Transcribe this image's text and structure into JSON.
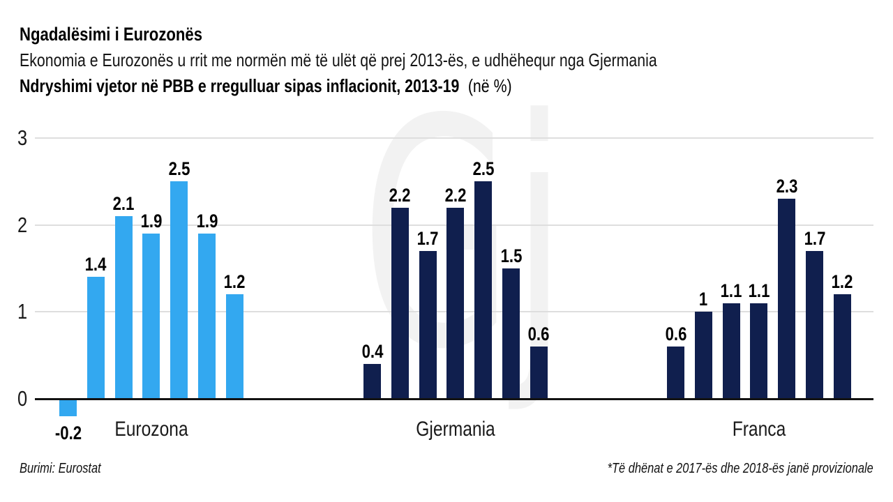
{
  "header": {
    "title": "Ngadalësimi i Eurozonës",
    "subtitle": "Ekonomia e Eurozonës u rrit me normën më të ulët që prej 2013-ës, e udhëhequr nga Gjermania",
    "measure": "Ndryshimi vjetor në PBB e rregulluar sipas inflacionit, 2013-19",
    "measure_unit": "(në %)"
  },
  "watermark": {
    "text": "Gj",
    "color": "#f2f2f2"
  },
  "footer": {
    "source": "Burimi: Eurostat",
    "note": "*Të dhënat e 2017-ës dhe 2018-ës janë provizionale"
  },
  "chart_data": {
    "type": "bar",
    "title": "Ngadalësimi i Eurozonës",
    "subtitle": "Ekonomia e Eurozonës u rrit me normën më të ulët që prej 2013-ës, e udhëhequr nga Gjermania",
    "ylabel": "Ndryshimi vjetor në PBB e rregulluar sipas inflacionit, 2013-19 (në %)",
    "y_ticks": [
      0,
      1,
      2,
      3
    ],
    "ylim": [
      -0.4,
      3
    ],
    "grid": "horizontal",
    "legend": "none",
    "value_labels": true,
    "groups": [
      {
        "label": "Eurozona",
        "color": "#33a8f0",
        "values": [
          -0.2,
          1.4,
          2.1,
          1.9,
          2.5,
          1.9,
          1.2
        ]
      },
      {
        "label": "Gjermania",
        "color": "#101f4e",
        "values": [
          0.4,
          2.2,
          1.7,
          2.2,
          2.5,
          1.5,
          0.6
        ]
      },
      {
        "label": "Franca",
        "color": "#101f4e",
        "values": [
          0.6,
          1,
          1.1,
          1.1,
          2.3,
          1.7,
          1.2
        ]
      }
    ],
    "source": "Burimi: Eurostat",
    "note": "*Të dhënat e 2017-ës dhe 2018-ës janë provizionale"
  }
}
